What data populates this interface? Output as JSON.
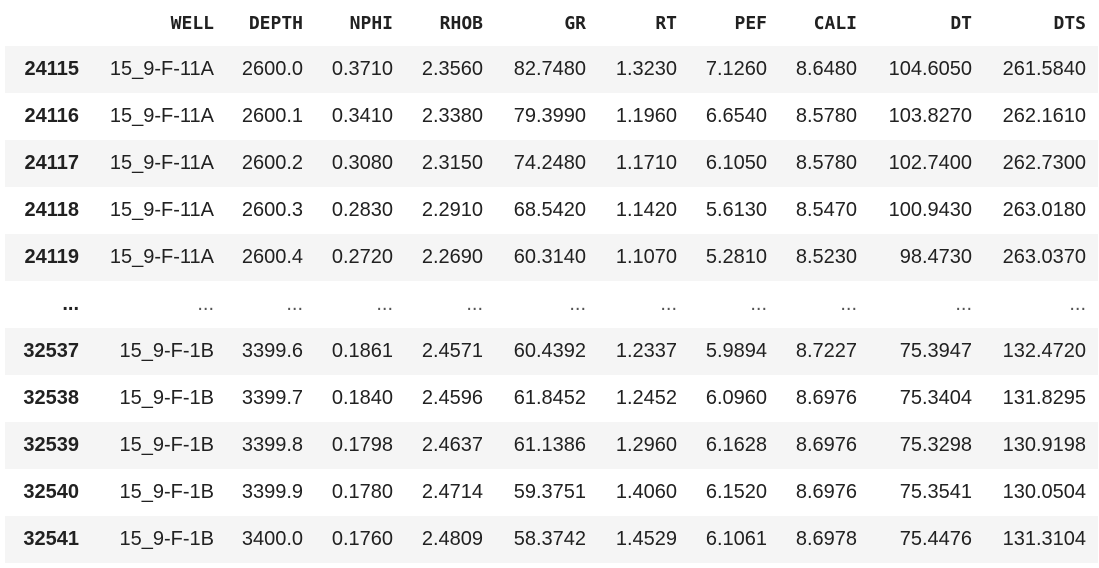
{
  "dataframe": {
    "columns": [
      "",
      "WELL",
      "DEPTH",
      "NPHI",
      "RHOB",
      "GR",
      "RT",
      "PEF",
      "CALI",
      "DT",
      "DTS"
    ],
    "rows": [
      {
        "index": "24115",
        "cells": [
          "15_9-F-11A",
          "2600.0",
          "0.3710",
          "2.3560",
          "82.7480",
          "1.3230",
          "7.1260",
          "8.6480",
          "104.6050",
          "261.5840"
        ]
      },
      {
        "index": "24116",
        "cells": [
          "15_9-F-11A",
          "2600.1",
          "0.3410",
          "2.3380",
          "79.3990",
          "1.1960",
          "6.6540",
          "8.5780",
          "103.8270",
          "262.1610"
        ]
      },
      {
        "index": "24117",
        "cells": [
          "15_9-F-11A",
          "2600.2",
          "0.3080",
          "2.3150",
          "74.2480",
          "1.1710",
          "6.1050",
          "8.5780",
          "102.7400",
          "262.7300"
        ]
      },
      {
        "index": "24118",
        "cells": [
          "15_9-F-11A",
          "2600.3",
          "0.2830",
          "2.2910",
          "68.5420",
          "1.1420",
          "5.6130",
          "8.5470",
          "100.9430",
          "263.0180"
        ]
      },
      {
        "index": "24119",
        "cells": [
          "15_9-F-11A",
          "2600.4",
          "0.2720",
          "2.2690",
          "60.3140",
          "1.1070",
          "5.2810",
          "8.5230",
          "98.4730",
          "263.0370"
        ]
      },
      {
        "index": "...",
        "cells": [
          "...",
          "...",
          "...",
          "...",
          "...",
          "...",
          "...",
          "...",
          "...",
          "..."
        ]
      },
      {
        "index": "32537",
        "cells": [
          "15_9-F-1B",
          "3399.6",
          "0.1861",
          "2.4571",
          "60.4392",
          "1.2337",
          "5.9894",
          "8.7227",
          "75.3947",
          "132.4720"
        ]
      },
      {
        "index": "32538",
        "cells": [
          "15_9-F-1B",
          "3399.7",
          "0.1840",
          "2.4596",
          "61.8452",
          "1.2452",
          "6.0960",
          "8.6976",
          "75.3404",
          "131.8295"
        ]
      },
      {
        "index": "32539",
        "cells": [
          "15_9-F-1B",
          "3399.8",
          "0.1798",
          "2.4637",
          "61.1386",
          "1.2960",
          "6.1628",
          "8.6976",
          "75.3298",
          "130.9198"
        ]
      },
      {
        "index": "32540",
        "cells": [
          "15_9-F-1B",
          "3399.9",
          "0.1780",
          "2.4714",
          "59.3751",
          "1.4060",
          "6.1520",
          "8.6976",
          "75.3541",
          "130.0504"
        ]
      },
      {
        "index": "32541",
        "cells": [
          "15_9-F-1B",
          "3400.0",
          "0.1760",
          "2.4809",
          "58.3742",
          "1.4529",
          "6.1061",
          "8.6978",
          "75.4476",
          "131.3104"
        ]
      }
    ]
  },
  "colors": {
    "row_stripe": "#f5f5f5",
    "background": "#ffffff",
    "text": "#212121"
  }
}
